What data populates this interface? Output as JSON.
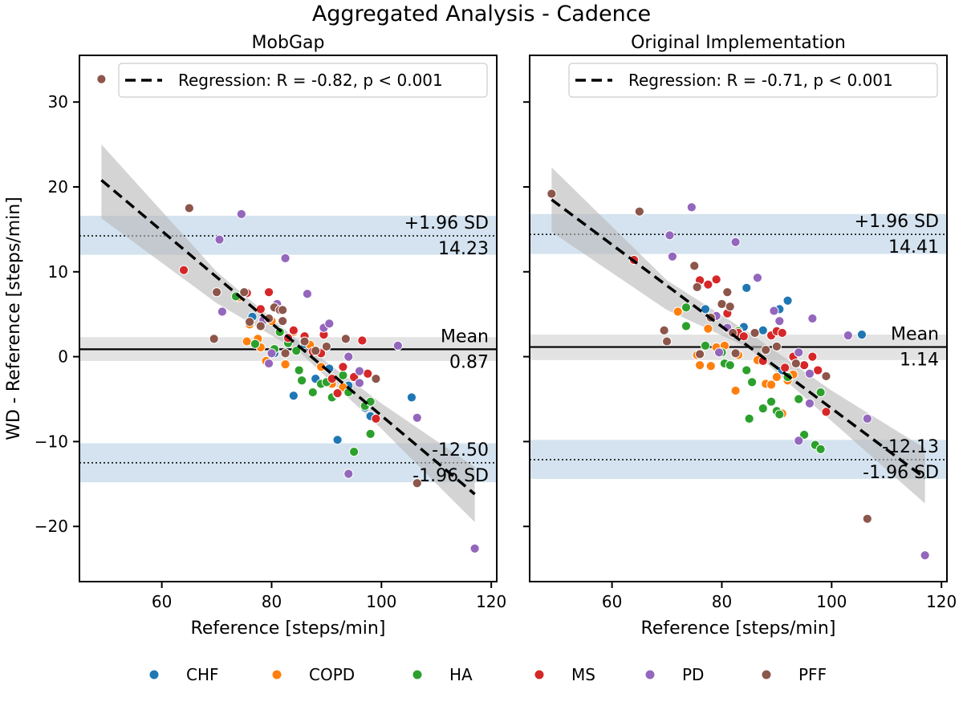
{
  "figure": {
    "title": "Aggregated Analysis  - Cadence"
  },
  "colors": {
    "CHF": "#1f77b4",
    "COPD": "#ff7f0e",
    "HA": "#2ca02c",
    "MS": "#d62728",
    "PD": "#9467bd",
    "PFF": "#8c564b",
    "loa_band": "#d4e3ef",
    "mean_band": "#e3e3e3",
    "ci_band": "#b8b8b8"
  },
  "legend_groups": [
    "CHF",
    "COPD",
    "HA",
    "MS",
    "PD",
    "PFF"
  ],
  "chart_data": [
    {
      "type": "scatter",
      "title": "MobGap",
      "xlabel": "Reference [steps/min]",
      "ylabel": "WD - Reference [steps/min]",
      "xlim": [
        45,
        121
      ],
      "ylim": [
        -26.5,
        35.5
      ],
      "xticks": [
        60,
        80,
        100,
        120
      ],
      "yticks": [
        -20,
        -10,
        0,
        10,
        20,
        30
      ],
      "regression": {
        "label": "Regression: R = -0.82, p < 0.001",
        "x0": 49,
        "y0": 20.8,
        "x1": 117,
        "y1": -16.2,
        "ci_upper": [
          [
            49,
            25.0
          ],
          [
            70,
            10.0
          ],
          [
            85,
            1.8
          ],
          [
            100,
            -5.5
          ],
          [
            117,
            -13.0
          ]
        ],
        "ci_lower": [
          [
            49,
            16.3
          ],
          [
            70,
            6.3
          ],
          [
            85,
            0.6
          ],
          [
            100,
            -8.5
          ],
          [
            117,
            -19.5
          ]
        ]
      },
      "mean": {
        "value": 0.87,
        "label": "Mean",
        "value_text": "0.87",
        "ci": [
          -0.5,
          2.3
        ]
      },
      "upper_loa": {
        "value": 14.23,
        "label": "+1.96 SD",
        "value_text": "14.23",
        "ci": [
          12.0,
          16.6
        ]
      },
      "lower_loa": {
        "value": -12.5,
        "label": "-1.96 SD",
        "value_text": "-12.50",
        "ci": [
          -14.8,
          -10.2
        ]
      },
      "series": [
        {
          "name": "CHF",
          "points": [
            [
              76.5,
              4.7
            ],
            [
              80.5,
              0.4
            ],
            [
              84,
              -4.6
            ],
            [
              88,
              -2.6
            ],
            [
              90.5,
              -1.4
            ],
            [
              91,
              -4.7
            ],
            [
              92,
              -9.8
            ],
            [
              94,
              -3.4
            ],
            [
              97,
              -6.0
            ],
            [
              98,
              -7.0
            ],
            [
              105.5,
              -4.8
            ],
            [
              86,
              1.5
            ]
          ]
        },
        {
          "name": "COPD",
          "points": [
            [
              74,
              7.0
            ],
            [
              75.5,
              1.8
            ],
            [
              76,
              3.8
            ],
            [
              77.5,
              2.1
            ],
            [
              78,
              1.1
            ],
            [
              79,
              -0.5
            ],
            [
              82.5,
              -0.9
            ],
            [
              87,
              1.4
            ],
            [
              89,
              -1.2
            ],
            [
              91,
              -3.2
            ],
            [
              93,
              -3.6
            ],
            [
              96,
              -1.8
            ],
            [
              84,
              2.9
            ],
            [
              80,
              4.2
            ]
          ]
        },
        {
          "name": "HA",
          "points": [
            [
              73.5,
              7.1
            ],
            [
              77,
              1.5
            ],
            [
              80.5,
              0.9
            ],
            [
              81.5,
              2.9
            ],
            [
              83,
              1.6
            ],
            [
              84.5,
              0.7
            ],
            [
              85,
              -1.6
            ],
            [
              85.5,
              -2.8
            ],
            [
              87.5,
              -4.2
            ],
            [
              89,
              -3.2
            ],
            [
              90,
              -3.0
            ],
            [
              91,
              -4.8
            ],
            [
              92,
              -4.4
            ],
            [
              93,
              -2.2
            ],
            [
              94,
              -4.2
            ],
            [
              95,
              -11.2
            ],
            [
              97,
              -5.8
            ],
            [
              98,
              -5.3
            ],
            [
              98,
              -9.1
            ]
          ]
        },
        {
          "name": "MS",
          "points": [
            [
              64,
              10.2
            ],
            [
              75.5,
              7.5
            ],
            [
              78,
              5.6
            ],
            [
              79.5,
              7.6
            ],
            [
              81,
              5.8
            ],
            [
              83,
              2.2
            ],
            [
              84,
              3.1
            ],
            [
              86,
              2.4
            ],
            [
              87.5,
              0.6
            ],
            [
              89,
              0.4
            ],
            [
              89.5,
              2.6
            ],
            [
              91,
              -2.6
            ],
            [
              92,
              -4.3
            ],
            [
              93,
              -1.2
            ],
            [
              95,
              -2.4
            ],
            [
              96.5,
              1.9
            ],
            [
              97.5,
              -2.0
            ],
            [
              99,
              -7.3
            ]
          ]
        },
        {
          "name": "PD",
          "points": [
            [
              70.5,
              13.8
            ],
            [
              71,
              5.3
            ],
            [
              74.5,
              16.8
            ],
            [
              79.5,
              -0.8
            ],
            [
              80,
              0.4
            ],
            [
              81,
              6.2
            ],
            [
              82.5,
              11.6
            ],
            [
              86.5,
              7.4
            ],
            [
              89.5,
              3.4
            ],
            [
              90.5,
              3.9
            ],
            [
              94,
              0.0
            ],
            [
              96,
              -1.7
            ],
            [
              96,
              -3.1
            ],
            [
              103,
              1.3
            ],
            [
              106.5,
              -7.2
            ],
            [
              117,
              -22.6
            ],
            [
              94,
              -13.8
            ],
            [
              78.5,
              4.3
            ]
          ]
        },
        {
          "name": "PFF",
          "points": [
            [
              49,
              32.7
            ],
            [
              65,
              17.5
            ],
            [
              69.5,
              2.1
            ],
            [
              70,
              7.6
            ],
            [
              75,
              7.6
            ],
            [
              76,
              4.1
            ],
            [
              78,
              3.6
            ],
            [
              79.5,
              4.5
            ],
            [
              80.5,
              5.8
            ],
            [
              81.5,
              5.5
            ],
            [
              82,
              4.2
            ],
            [
              82.5,
              0.4
            ],
            [
              86,
              1.8
            ],
            [
              88,
              0.7
            ],
            [
              90,
              1.2
            ],
            [
              93.5,
              2.1
            ],
            [
              99,
              -2.6
            ],
            [
              106.5,
              -14.9
            ],
            [
              82,
              5.5
            ]
          ]
        }
      ]
    },
    {
      "type": "scatter",
      "title": "Original Implementation",
      "xlabel": "Reference [steps/min]",
      "ylabel": "",
      "xlim": [
        45,
        121
      ],
      "ylim": [
        -26.5,
        35.5
      ],
      "xticks": [
        60,
        80,
        100,
        120
      ],
      "yticks": [
        -20,
        -10,
        0,
        10,
        20,
        30
      ],
      "regression": {
        "label": "Regression: R = -0.71, p < 0.001",
        "x0": 49,
        "y0": 18.5,
        "x1": 117,
        "y1": -14.3,
        "ci_upper": [
          [
            49,
            22.3
          ],
          [
            70,
            9.0
          ],
          [
            85,
            2.8
          ],
          [
            100,
            -4.0
          ],
          [
            117,
            -10.8
          ]
        ],
        "ci_lower": [
          [
            49,
            14.7
          ],
          [
            70,
            5.5
          ],
          [
            85,
            1.0
          ],
          [
            100,
            -7.6
          ],
          [
            117,
            -17.3
          ]
        ]
      },
      "mean": {
        "value": 1.14,
        "label": "Mean",
        "value_text": "1.14",
        "ci": [
          -0.4,
          2.6
        ]
      },
      "upper_loa": {
        "value": 14.41,
        "label": "+1.96 SD",
        "value_text": "14.41",
        "ci": [
          12.1,
          16.8
        ]
      },
      "lower_loa": {
        "value": -12.13,
        "label": "-1.96 SD",
        "value_text": "-12.13",
        "ci": [
          -14.4,
          -9.8
        ]
      },
      "series": [
        {
          "name": "CHF",
          "points": [
            [
              77,
              5.6
            ],
            [
              84.5,
              8.1
            ],
            [
              87.5,
              3.1
            ],
            [
              90.5,
              5.6
            ],
            [
              92,
              6.6
            ],
            [
              105.5,
              2.6
            ],
            [
              84,
              3.5
            ],
            [
              91,
              -1.6
            ]
          ]
        },
        {
          "name": "COPD",
          "points": [
            [
              72,
              5.3
            ],
            [
              75.5,
              0.2
            ],
            [
              76,
              -1.0
            ],
            [
              77.5,
              3.3
            ],
            [
              78,
              -1.1
            ],
            [
              79,
              1.1
            ],
            [
              80.5,
              1.3
            ],
            [
              82.5,
              -4.0
            ],
            [
              83,
              0.2
            ],
            [
              86.5,
              -0.4
            ],
            [
              88,
              -3.2
            ],
            [
              89,
              -3.3
            ],
            [
              90,
              -2.4
            ],
            [
              91,
              -6.7
            ],
            [
              92,
              -2.8
            ],
            [
              93,
              -2.1
            ]
          ]
        },
        {
          "name": "HA",
          "points": [
            [
              73.5,
              5.8
            ],
            [
              73.5,
              3.6
            ],
            [
              77,
              1.3
            ],
            [
              80,
              0.5
            ],
            [
              80.5,
              -0.8
            ],
            [
              81.5,
              -1.0
            ],
            [
              83,
              3.0
            ],
            [
              84.5,
              -1.6
            ],
            [
              85,
              -7.3
            ],
            [
              85.5,
              -3.0
            ],
            [
              87.5,
              -6.1
            ],
            [
              89,
              -5.3
            ],
            [
              90,
              -6.4
            ],
            [
              90.5,
              -6.8
            ],
            [
              92,
              -2.4
            ],
            [
              94,
              -5.0
            ],
            [
              95,
              -9.2
            ],
            [
              97,
              -10.4
            ],
            [
              98,
              -4.2
            ],
            [
              98,
              -10.9
            ]
          ]
        },
        {
          "name": "MS",
          "points": [
            [
              64,
              11.4
            ],
            [
              76,
              9.0
            ],
            [
              77.5,
              8.5
            ],
            [
              79,
              9.1
            ],
            [
              81,
              5.1
            ],
            [
              83,
              2.8
            ],
            [
              84,
              2.4
            ],
            [
              86,
              2.8
            ],
            [
              87.5,
              -0.5
            ],
            [
              89,
              2.5
            ],
            [
              90,
              3.0
            ],
            [
              91,
              2.8
            ],
            [
              91.5,
              -1.3
            ],
            [
              93,
              0.0
            ],
            [
              95,
              -1.0
            ],
            [
              96.5,
              0.0
            ],
            [
              97.5,
              -1.6
            ],
            [
              99,
              -6.5
            ]
          ]
        },
        {
          "name": "PD",
          "points": [
            [
              70.5,
              14.3
            ],
            [
              71,
              11.8
            ],
            [
              74.5,
              17.6
            ],
            [
              79.5,
              0.5
            ],
            [
              80,
              6.1
            ],
            [
              81,
              3.4
            ],
            [
              82.5,
              13.5
            ],
            [
              86.5,
              9.3
            ],
            [
              89.5,
              5.4
            ],
            [
              90.5,
              4.2
            ],
            [
              94,
              0.5
            ],
            [
              96,
              -2.0
            ],
            [
              96.5,
              4.5
            ],
            [
              96,
              -5.5
            ],
            [
              103,
              2.5
            ],
            [
              106.5,
              -7.3
            ],
            [
              117,
              -23.4
            ],
            [
              94,
              -9.9
            ],
            [
              79,
              4.8
            ]
          ]
        },
        {
          "name": "PFF",
          "points": [
            [
              49,
              19.2
            ],
            [
              65,
              17.1
            ],
            [
              69.5,
              3.1
            ],
            [
              70,
              1.8
            ],
            [
              75,
              10.7
            ],
            [
              76,
              0.3
            ],
            [
              78,
              4.6
            ],
            [
              80,
              6.2
            ],
            [
              81,
              7.6
            ],
            [
              81.5,
              5.9
            ],
            [
              82,
              2.8
            ],
            [
              82.5,
              0.4
            ],
            [
              86,
              2.8
            ],
            [
              88,
              0.8
            ],
            [
              90,
              1.2
            ],
            [
              93.5,
              -0.8
            ],
            [
              99,
              -2.3
            ],
            [
              106.5,
              -19.1
            ],
            [
              75.5,
              8.2
            ]
          ]
        }
      ]
    }
  ]
}
